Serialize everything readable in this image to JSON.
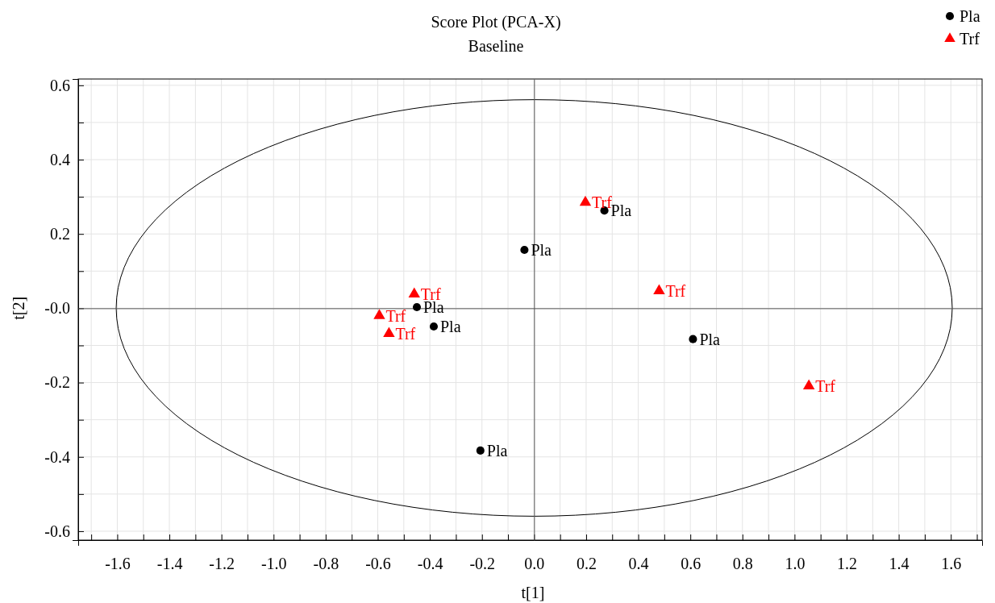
{
  "chart_data": {
    "type": "scatter",
    "title": "Score Plot (PCA-X)",
    "subtitle": "Baseline",
    "xlabel": "t[1]",
    "ylabel": "t[2]",
    "xlim": [
      -1.75,
      1.72
    ],
    "ylim": [
      -0.624,
      0.617
    ],
    "xticks": [
      {
        "value": -1.7,
        "label": null
      },
      -1.6,
      {
        "value": -1.5,
        "label": null
      },
      -1.4,
      {
        "value": -1.3,
        "label": null
      },
      -1.2,
      {
        "value": -1.1,
        "label": null
      },
      {
        "value": -1.0,
        "label": "-1.0"
      },
      {
        "value": -0.9,
        "label": null
      },
      -0.8,
      {
        "value": -0.7,
        "label": null
      },
      -0.6,
      {
        "value": -0.5,
        "label": null
      },
      -0.4,
      {
        "value": -0.3,
        "label": null
      },
      -0.2,
      {
        "value": -0.1,
        "label": null
      },
      {
        "value": 0,
        "label": "0.0"
      },
      {
        "value": 0.1,
        "label": null
      },
      0.2,
      {
        "value": 0.3,
        "label": null
      },
      0.4,
      {
        "value": 0.5,
        "label": null
      },
      0.6,
      {
        "value": 0.7,
        "label": null
      },
      0.8,
      {
        "value": 0.9,
        "label": null
      },
      {
        "value": 1.0,
        "label": "1.0"
      },
      {
        "value": 1.1,
        "label": null
      },
      1.2,
      {
        "value": 1.3,
        "label": null
      },
      1.4,
      {
        "value": 1.5,
        "label": null
      },
      1.6,
      {
        "value": 1.7,
        "label": null
      }
    ],
    "yticks": [
      -0.6,
      {
        "value": -0.5,
        "label": null
      },
      -0.4,
      {
        "value": -0.3,
        "label": null
      },
      -0.2,
      {
        "value": -0.1,
        "label": null
      },
      {
        "value": 0,
        "label": "-0.0"
      },
      {
        "value": 0.1,
        "label": null
      },
      0.2,
      {
        "value": 0.3,
        "label": null
      },
      0.4,
      {
        "value": 0.5,
        "label": null
      },
      0.6
    ],
    "grid": true,
    "legend": "top right",
    "series": [
      {
        "name": "Pla",
        "color": "#000000",
        "marker": "circle",
        "x": [
          0.27,
          -0.037,
          -0.45,
          -0.385,
          0.61,
          -0.206
        ],
        "values": [
          0.263,
          0.157,
          0.003,
          -0.049,
          -0.083,
          -0.383
        ],
        "value_labels": [
          "Pla",
          "Pla",
          "Pla",
          "Pla",
          "Pla",
          "Pla"
        ]
      },
      {
        "name": "Trf",
        "color": "#ff0000",
        "marker": "triangle",
        "x": [
          0.197,
          -0.46,
          -0.594,
          -0.557,
          0.48,
          1.055
        ],
        "values": [
          0.285,
          0.038,
          -0.02,
          -0.068,
          0.047,
          -0.209
        ],
        "value_labels": [
          "Trf",
          "Trf",
          "Trf",
          "Trf",
          "Trf",
          "Trf"
        ]
      }
    ]
  }
}
